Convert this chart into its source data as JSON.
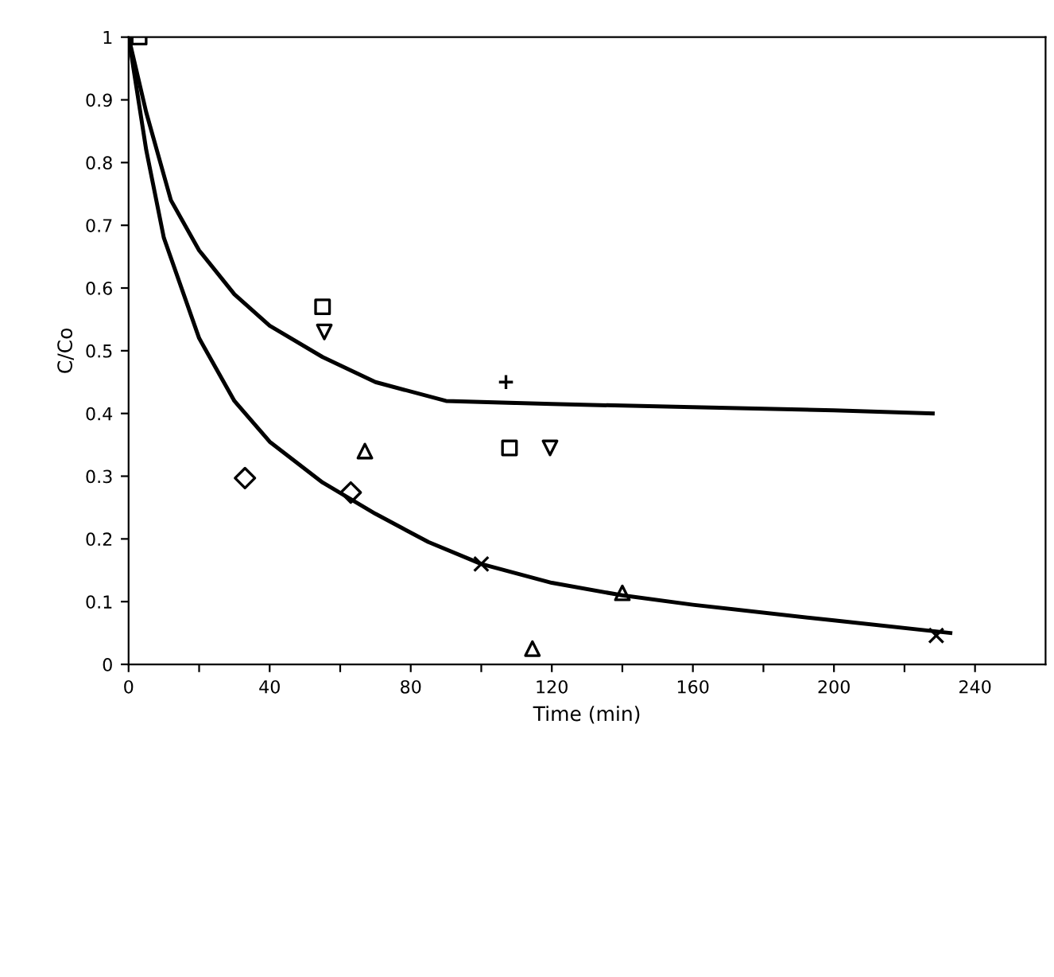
{
  "chart_data": {
    "type": "scatter",
    "xlabel": "Time (min)",
    "ylabel": "C/Co",
    "xlim": [
      0,
      260
    ],
    "ylim": [
      0,
      1
    ],
    "xticks": [
      0,
      {
        "value": 20,
        "label": null
      },
      40,
      {
        "value": 60,
        "label": null
      },
      80,
      {
        "value": 100,
        "label": null
      },
      120,
      {
        "value": 140,
        "label": null
      },
      160,
      {
        "value": 180,
        "label": null
      },
      200,
      {
        "value": 220,
        "label": null
      },
      240
    ],
    "yticks": [
      0,
      0.1,
      0.2,
      0.3,
      0.4,
      0.5,
      0.6,
      0.7,
      0.8,
      0.9,
      1
    ],
    "grid": false,
    "legend": false,
    "series": [
      {
        "type": "line",
        "color": "#000000",
        "marker": "none",
        "line_style": "solid",
        "x": [
          0,
          5,
          12,
          20,
          30,
          40,
          55,
          70,
          90,
          120,
          160,
          200,
          228
        ],
        "values": [
          1,
          0.88,
          0.74,
          0.66,
          0.59,
          0.54,
          0.49,
          0.45,
          0.42,
          0.415,
          0.41,
          0.405,
          0.4
        ]
      },
      {
        "type": "line",
        "color": "#000000",
        "marker": "none",
        "line_style": "solid",
        "x": [
          0,
          5,
          10,
          20,
          30,
          40,
          55,
          70,
          85,
          100,
          120,
          140,
          160,
          200,
          233
        ],
        "values": [
          1,
          0.82,
          0.68,
          0.52,
          0.42,
          0.355,
          0.29,
          0.24,
          0.195,
          0.16,
          0.13,
          0.11,
          0.095,
          0.07,
          0.05
        ]
      },
      {
        "color": "#000000",
        "marker": "square",
        "x": [
          3,
          55,
          108
        ],
        "values": [
          1,
          0.57,
          0.345
        ]
      },
      {
        "color": "#000000",
        "marker": "triangle_down",
        "x": [
          55.5,
          119.5
        ],
        "values": [
          0.53,
          0.345
        ]
      },
      {
        "color": "#000000",
        "marker": "plus",
        "x": [
          107
        ],
        "values": [
          0.45
        ]
      },
      {
        "color": "#000000",
        "marker": "triangle",
        "x": [
          67,
          114.5,
          140
        ],
        "values": [
          0.34,
          0.025,
          0.114
        ]
      },
      {
        "color": "#000000",
        "marker": "diamond",
        "x": [
          33,
          63
        ],
        "values": [
          0.297,
          0.274
        ]
      },
      {
        "color": "#000000",
        "marker": "cross",
        "x": [
          100,
          229
        ],
        "values": [
          0.16,
          0.046
        ]
      }
    ]
  }
}
